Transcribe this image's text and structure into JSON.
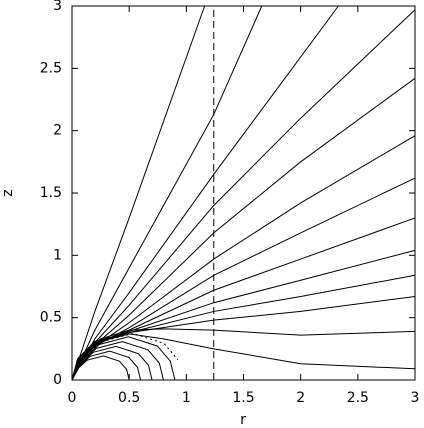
{
  "chart_data": {
    "type": "line",
    "x_label": "r",
    "y_label": "z",
    "xlim": [
      0,
      3
    ],
    "ylim": [
      0,
      3
    ],
    "xticks": [
      0,
      0.5,
      1,
      1.5,
      2,
      2.5,
      3
    ],
    "yticks": [
      0,
      0.5,
      1,
      1.5,
      2,
      2.5,
      3
    ],
    "grid": false,
    "series": [
      {
        "color": "#000",
        "dash": "solid",
        "x": [
          0,
          0.2,
          0.5,
          1.16
        ],
        "values": [
          0,
          0.55,
          1.3,
          3
        ]
      },
      {
        "color": "#000",
        "dash": "solid",
        "x": [
          0,
          0.2,
          0.5,
          1.24,
          1.66
        ],
        "values": [
          0,
          0.4,
          0.9,
          2.13,
          3
        ]
      },
      {
        "color": "#000",
        "dash": "solid",
        "x": [
          0,
          0.2,
          0.5,
          1.24,
          2.33
        ],
        "values": [
          0,
          0.33,
          0.7,
          1.65,
          3
        ]
      },
      {
        "color": "#000",
        "dash": "solid",
        "x": [
          0,
          0.05,
          0.2,
          0.5,
          1.24,
          2,
          3
        ],
        "values": [
          0,
          0.12,
          0.3,
          0.6,
          1.4,
          2.1,
          2.97
        ]
      },
      {
        "color": "#000",
        "dash": "solid",
        "x": [
          0,
          0.05,
          0.2,
          0.5,
          1.24,
          2,
          3
        ],
        "values": [
          0,
          0.13,
          0.28,
          0.52,
          1.18,
          1.75,
          2.42
        ]
      },
      {
        "color": "#000",
        "dash": "solid",
        "x": [
          0,
          0.05,
          0.2,
          0.5,
          1.24,
          2,
          3
        ],
        "values": [
          0,
          0.14,
          0.27,
          0.46,
          0.97,
          1.42,
          1.96
        ]
      },
      {
        "color": "#000",
        "dash": "solid",
        "x": [
          0,
          0.05,
          0.2,
          0.5,
          1.24,
          2,
          3
        ],
        "values": [
          0,
          0.15,
          0.27,
          0.42,
          0.84,
          1.18,
          1.62
        ]
      },
      {
        "color": "#000",
        "dash": "solid",
        "x": [
          0,
          0.05,
          0.2,
          0.5,
          1.24,
          2,
          3
        ],
        "values": [
          0,
          0.16,
          0.28,
          0.4,
          0.72,
          0.97,
          1.3
        ]
      },
      {
        "color": "#000",
        "dash": "solid",
        "x": [
          0,
          0.05,
          0.2,
          0.5,
          1.24,
          2,
          3
        ],
        "values": [
          0,
          0.17,
          0.29,
          0.39,
          0.62,
          0.8,
          1.04
        ]
      },
      {
        "color": "#000",
        "dash": "solid",
        "x": [
          0,
          0.05,
          0.2,
          0.5,
          1.24,
          2,
          3
        ],
        "values": [
          0,
          0.17,
          0.3,
          0.38,
          0.55,
          0.67,
          0.84
        ]
      },
      {
        "color": "#000",
        "dash": "solid",
        "x": [
          0,
          0.05,
          0.2,
          0.5,
          1.24,
          2,
          3
        ],
        "values": [
          0,
          0.17,
          0.31,
          0.38,
          0.48,
          0.55,
          0.67
        ]
      },
      {
        "color": "#000",
        "dash": "solid",
        "x": [
          0,
          0.07,
          0.25,
          0.5,
          0.8,
          1.24,
          2,
          3
        ],
        "values": [
          0,
          0.16,
          0.33,
          0.4,
          0.41,
          0.4,
          0.36,
          0.39
        ]
      },
      {
        "color": "#000",
        "dash": "solid",
        "x": [
          0,
          0.07,
          0.25,
          0.5,
          0.8,
          1.24,
          2,
          3
        ],
        "values": [
          0,
          0.16,
          0.31,
          0.37,
          0.33,
          0.25,
          0.13,
          0.09
        ]
      },
      {
        "color": "#000",
        "dash": "dotted",
        "x": [
          0,
          0.073,
          0.258,
          0.533,
          0.805,
          0.926
        ],
        "values": [
          0,
          0.157,
          0.307,
          0.373,
          0.293,
          0.163
        ]
      },
      {
        "color": "#000",
        "dash": "solid",
        "x": [
          0,
          0.068,
          0.239,
          0.495,
          0.747,
          0.86,
          0.9
        ],
        "values": [
          0,
          0.146,
          0.285,
          0.347,
          0.272,
          0.151,
          0
        ]
      },
      {
        "color": "#000",
        "dash": "solid",
        "x": [
          0,
          0.06,
          0.213,
          0.44,
          0.664,
          0.764,
          0.8
        ],
        "values": [
          0,
          0.13,
          0.254,
          0.308,
          0.242,
          0.134,
          0
        ]
      },
      {
        "color": "#000",
        "dash": "solid",
        "x": [
          0,
          0.053,
          0.186,
          0.385,
          0.581,
          0.669,
          0.7
        ],
        "values": [
          0,
          0.113,
          0.222,
          0.27,
          0.211,
          0.118,
          0
        ]
      },
      {
        "color": "#000",
        "dash": "solid",
        "x": [
          0,
          0.045,
          0.16,
          0.33,
          0.498,
          0.573,
          0.6
        ],
        "values": [
          0,
          0.097,
          0.19,
          0.231,
          0.181,
          0.101,
          0
        ]
      },
      {
        "color": "#000",
        "dash": "solid",
        "x": [
          0,
          0.038,
          0.133,
          0.275,
          0.415,
          0.478,
          0.5
        ],
        "values": [
          0,
          0.081,
          0.159,
          0.193,
          0.151,
          0.084,
          0
        ]
      },
      {
        "color": "#000",
        "dash": "dashed",
        "x": [
          1.24,
          1.24
        ],
        "values": [
          0,
          3
        ]
      }
    ]
  }
}
